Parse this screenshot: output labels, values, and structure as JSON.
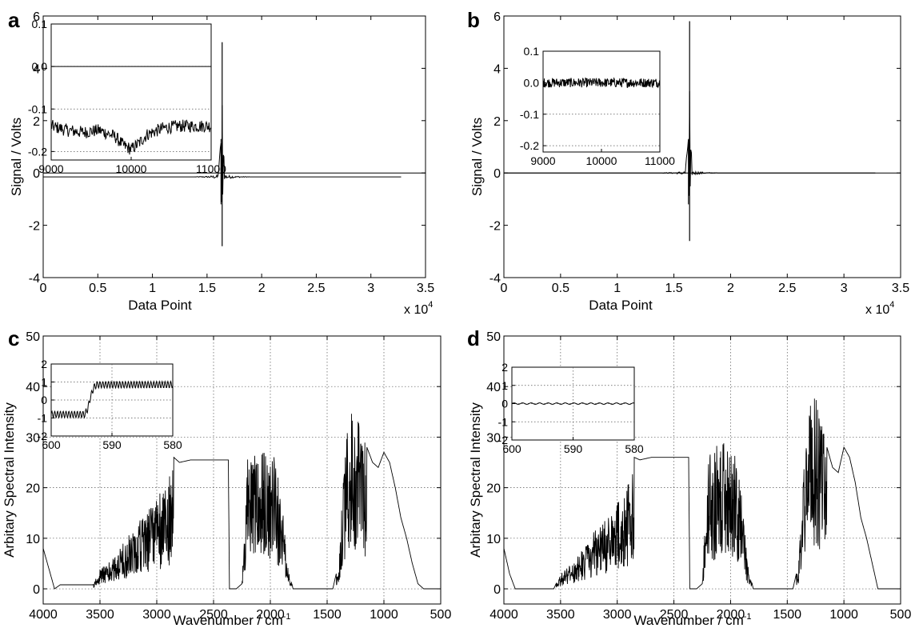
{
  "figure": {
    "panels": [
      {
        "id": "a",
        "panel_label": "a",
        "xlabel": "Data Point",
        "ylabel": "Signal / Volts",
        "x_multiplier_text": "x 10",
        "x_multiplier_exp": "4",
        "xticks": [
          "0",
          "0.5",
          "1",
          "1.5",
          "2",
          "2.5",
          "3",
          "3.5"
        ],
        "yticks": [
          "-4",
          "-2",
          "0",
          "2",
          "4",
          "6"
        ],
        "inset_xticks": [
          "9000",
          "10000",
          "11000"
        ],
        "inset_yticks": [
          "0.1",
          "0.0",
          "-0.1",
          "-0.2"
        ]
      },
      {
        "id": "b",
        "panel_label": "b",
        "xlabel": "Data Point",
        "ylabel": "Signal / Volts",
        "x_multiplier_text": "x 10",
        "x_multiplier_exp": "4",
        "xticks": [
          "0",
          "0.5",
          "1",
          "1.5",
          "2",
          "2.5",
          "3",
          "3.5"
        ],
        "yticks": [
          "-4",
          "-2",
          "0",
          "2",
          "4",
          "6"
        ],
        "inset_xticks": [
          "9000",
          "10000",
          "11000"
        ],
        "inset_yticks": [
          "0.1",
          "0.0",
          "-0.1",
          "-0.2"
        ]
      },
      {
        "id": "c",
        "panel_label": "c",
        "xlabel": "Wavenumber / cm",
        "xlabel_sup": "-1",
        "ylabel": "Arbitary Spectral Intensity",
        "xticks": [
          "4000",
          "3500",
          "3000",
          "2500",
          "2000",
          "1500",
          "1000",
          "500"
        ],
        "yticks": [
          "0",
          "10",
          "20",
          "30",
          "40",
          "50"
        ],
        "inset_xticks": [
          "600",
          "590",
          "580"
        ],
        "inset_yticks": [
          "2",
          "1",
          "0",
          "-1",
          "-2"
        ]
      },
      {
        "id": "d",
        "panel_label": "d",
        "xlabel": "Wavenumber / cm",
        "xlabel_sup": "-1",
        "ylabel": "Arbitary Spectral Intensity",
        "xticks": [
          "4000",
          "3500",
          "3000",
          "2500",
          "2000",
          "1500",
          "1000",
          "500"
        ],
        "yticks": [
          "0",
          "10",
          "20",
          "30",
          "40",
          "50"
        ],
        "inset_xticks": [
          "600",
          "590",
          "580"
        ],
        "inset_yticks": [
          "2",
          "1",
          "0",
          "-1",
          "-2"
        ]
      }
    ]
  },
  "chart_data": [
    {
      "panel": "a",
      "type": "line",
      "xlabel": "Data Point",
      "ylabel": "Signal / Volts",
      "x_scale_factor": 10000,
      "xlim": [
        0,
        35000
      ],
      "ylim": [
        -4,
        6
      ],
      "grid": false,
      "series": [
        {
          "x": [
            0,
            16000,
            16300,
            16350,
            16400,
            16450,
            16500,
            16600,
            16700,
            32768
          ],
          "y": [
            -0.15,
            -0.15,
            1.3,
            -2.8,
            5.0,
            -2.6,
            1.3,
            -0.15,
            -0.15,
            -0.15
          ]
        }
      ],
      "inset": {
        "type": "line",
        "xlim": [
          9000,
          11000
        ],
        "ylim": [
          -0.22,
          0.1
        ],
        "grid": true,
        "series": [
          {
            "x": [
              9000,
              9200,
              9400,
              9600,
              9800,
              9900,
              10000,
              10100,
              10200,
              10400,
              10600,
              10800,
              11000
            ],
            "y": [
              -0.14,
              -0.15,
              -0.155,
              -0.15,
              -0.165,
              -0.185,
              -0.195,
              -0.18,
              -0.16,
              -0.145,
              -0.14,
              -0.14,
              -0.14
            ]
          }
        ]
      }
    },
    {
      "panel": "b",
      "type": "line",
      "xlabel": "Data Point",
      "ylabel": "Signal / Volts",
      "x_scale_factor": 10000,
      "xlim": [
        0,
        35000
      ],
      "ylim": [
        -4,
        6
      ],
      "grid": false,
      "series": [
        {
          "x": [
            0,
            16000,
            16300,
            16350,
            16400,
            16450,
            16500,
            16600,
            16700,
            32768
          ],
          "y": [
            0,
            0,
            1.4,
            -2.6,
            5.8,
            -2.5,
            1.3,
            0,
            0,
            0
          ]
        }
      ],
      "inset": {
        "type": "line",
        "xlim": [
          9000,
          11000
        ],
        "ylim": [
          -0.22,
          0.1
        ],
        "grid": true,
        "series": [
          {
            "x": [
              9000,
              9500,
              10000,
              10500,
              11000
            ],
            "y": [
              0.0,
              0.0,
              0.0,
              0.0,
              0.0
            ]
          }
        ]
      }
    },
    {
      "panel": "c",
      "type": "line",
      "xlabel": "Wavenumber / cm-1",
      "ylabel": "Arbitary Spectral Intensity",
      "xlim": [
        4000,
        500
      ],
      "x_reversed": true,
      "ylim": [
        0,
        50
      ],
      "y_axis_min": -3,
      "grid": true,
      "series": [
        {
          "x": [
            4000,
            3950,
            3900,
            3850,
            3800,
            3700,
            3600,
            3560,
            3500,
            3400,
            3300,
            3200,
            3100,
            3000,
            2900,
            2850,
            2800,
            2700,
            2600,
            2500,
            2400,
            2370,
            2360,
            2300,
            2250,
            2200,
            2150,
            2100,
            2050,
            2000,
            1950,
            1900,
            1850,
            1800,
            1700,
            1600,
            1500,
            1450,
            1400,
            1350,
            1300,
            1250,
            1200,
            1150,
            1100,
            1050,
            1000,
            950,
            900,
            850,
            800,
            750,
            700,
            650,
            600,
            550,
            500
          ],
          "y": [
            8,
            4,
            0,
            0.8,
            0.8,
            0.8,
            0.8,
            0.8,
            4,
            6,
            9,
            12,
            15,
            18,
            22,
            26,
            25,
            25.5,
            25.5,
            25.5,
            25.5,
            25.5,
            0,
            0,
            1,
            26,
            27,
            27.5,
            28,
            28,
            25,
            18,
            5,
            0,
            0,
            0,
            0,
            0,
            5,
            25,
            37,
            37.5,
            33,
            28,
            25,
            24,
            27,
            25,
            20,
            14,
            10,
            5,
            1,
            0,
            0,
            0,
            0
          ]
        }
      ],
      "inset": {
        "type": "line",
        "xlim": [
          600,
          580
        ],
        "ylim": [
          -2,
          2
        ],
        "grid": true,
        "series": [
          {
            "x": [
              600,
              598,
              596,
              594.5,
              594,
              593.5,
              593,
              592.5,
              592,
              590,
              588,
              586,
              584,
              582,
              580
            ],
            "y": [
              -0.8,
              -0.8,
              -0.8,
              -0.8,
              -0.5,
              0.2,
              0.7,
              0.85,
              0.85,
              0.85,
              0.85,
              0.85,
              0.85,
              0.85,
              0.85
            ]
          }
        ]
      }
    },
    {
      "panel": "d",
      "type": "line",
      "xlabel": "Wavenumber / cm-1",
      "ylabel": "Arbitary Spectral Intensity",
      "xlim": [
        4000,
        500
      ],
      "x_reversed": true,
      "ylim": [
        0,
        50
      ],
      "y_axis_min": -3,
      "grid": true,
      "series": [
        {
          "x": [
            4000,
            3950,
            3900,
            3850,
            3800,
            3700,
            3600,
            3560,
            3500,
            3400,
            3300,
            3200,
            3100,
            3000,
            2900,
            2850,
            2800,
            2700,
            2600,
            2500,
            2400,
            2370,
            2360,
            2300,
            2250,
            2200,
            2150,
            2100,
            2050,
            2000,
            1950,
            1900,
            1850,
            1800,
            1700,
            1600,
            1500,
            1450,
            1400,
            1350,
            1300,
            1250,
            1200,
            1150,
            1100,
            1050,
            1000,
            950,
            900,
            850,
            800,
            750,
            700,
            650,
            600,
            550,
            500
          ],
          "y": [
            8,
            3,
            0,
            0,
            0,
            0,
            0,
            0,
            3,
            5,
            8,
            12,
            15,
            18,
            22,
            26,
            25.5,
            26,
            26,
            26,
            26,
            26,
            0,
            0,
            1,
            27,
            28,
            28.5,
            29,
            29,
            26,
            18,
            5,
            0,
            0,
            0,
            0,
            0,
            5,
            25,
            37,
            38,
            33,
            28,
            24,
            23,
            28,
            26,
            21,
            14,
            10,
            5,
            0,
            0,
            0,
            0,
            0
          ]
        }
      ],
      "inset": {
        "type": "line",
        "xlim": [
          600,
          580
        ],
        "ylim": [
          -2,
          2
        ],
        "grid": true,
        "series": [
          {
            "x": [
              600,
              595,
              590,
              585,
              580
            ],
            "y": [
              0.0,
              0.0,
              0.0,
              0.0,
              0.0
            ]
          }
        ]
      }
    }
  ]
}
